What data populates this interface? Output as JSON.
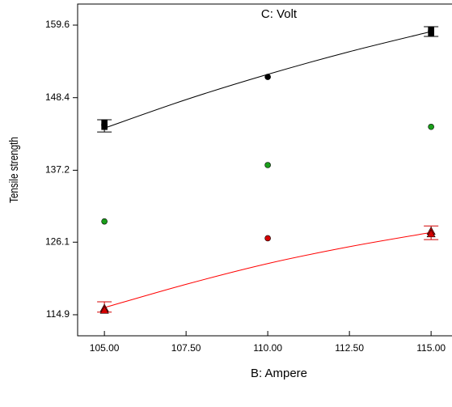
{
  "chart_data": {
    "type": "scatter",
    "annotation": "C: Volt",
    "xlabel": "B: Ampere",
    "ylabel": "Tensile strength",
    "xlim": [
      104.18,
      115.64
    ],
    "xticks": [
      {
        "value": 105,
        "label": "105.00"
      },
      {
        "value": 107.5,
        "label": "107.50"
      },
      {
        "value": 110,
        "label": "110.00"
      },
      {
        "value": 112.5,
        "label": "112.50"
      },
      {
        "value": 115,
        "label": "115.00"
      }
    ],
    "ylim": [
      111.65,
      162.85
    ],
    "yticks": [
      114.9,
      126.1,
      137.2,
      148.4,
      159.6
    ],
    "series": [
      {
        "color": "#000000",
        "markers": [
          "square",
          "square",
          "circle",
          "square",
          "square"
        ],
        "x": [
          105,
          105,
          110,
          115,
          115
        ],
        "values": [
          144.5,
          143.9,
          151.6,
          158.9,
          158.4
        ]
      },
      {
        "color": "#1a9e1a",
        "markers": [
          "circle",
          "circle",
          "circle"
        ],
        "x": [
          105,
          110,
          115
        ],
        "values": [
          129.3,
          138.0,
          143.9
        ]
      },
      {
        "color": "#d40000",
        "markers": [
          "triangle",
          "triangle",
          "circle",
          "triangle",
          "triangle"
        ],
        "x": [
          105,
          105,
          110,
          115,
          115
        ],
        "values": [
          115.9,
          115.6,
          126.7,
          127.8,
          127.4
        ]
      }
    ],
    "fits": [
      {
        "color": "#000000",
        "x": [
          105,
          107.5,
          110,
          112.5,
          115
        ],
        "values": [
          143.7,
          148.1,
          152.0,
          155.5,
          158.6
        ]
      },
      {
        "color": "#ff0000",
        "x": [
          105,
          107.5,
          110,
          112.5,
          115
        ],
        "values": [
          116.0,
          119.6,
          122.8,
          125.4,
          127.6
        ]
      }
    ],
    "error_bars": [
      {
        "color": "#000000",
        "x": 105,
        "low": 143.1,
        "high": 145.0
      },
      {
        "color": "#000000",
        "x": 115,
        "low": 157.85,
        "high": 159.35
      },
      {
        "color": "#d40000",
        "x": 105,
        "low": 115.3,
        "high": 116.9
      },
      {
        "color": "#d40000",
        "x": 115,
        "low": 126.5,
        "high": 128.6
      }
    ]
  }
}
